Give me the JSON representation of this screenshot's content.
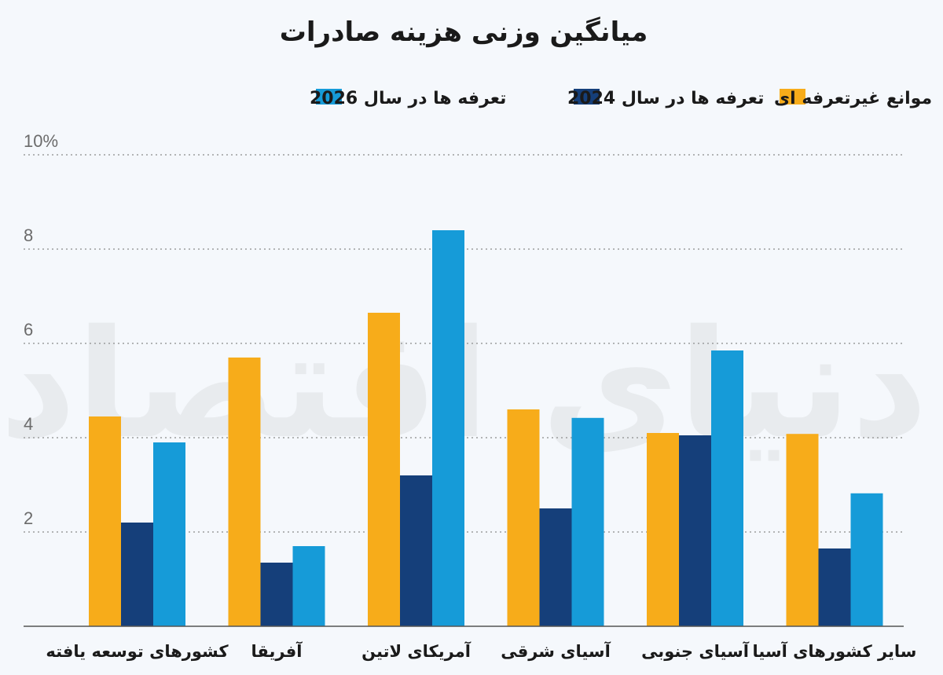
{
  "chart_data": {
    "type": "bar",
    "title": "میانگین وزنی هزینه صادرات",
    "categories": [
      "کشورهای توسعه یافته",
      "آفریقا",
      "آمریکای لاتین",
      "آسیای شرقی",
      "آسیای جنوبی",
      "سایر کشورهای آسیا"
    ],
    "series": [
      {
        "name": "موانع غیرتعرفه ای",
        "color": "#f7ac1a",
        "values": [
          4.45,
          5.7,
          6.65,
          4.6,
          4.1,
          4.08
        ]
      },
      {
        "name": "تعرفه ها در سال 2024",
        "color": "#153f7a",
        "values": [
          2.2,
          1.35,
          3.2,
          2.5,
          4.05,
          1.65
        ]
      },
      {
        "name": "تعرفه ها در سال 2026",
        "color": "#169bd8",
        "values": [
          3.9,
          1.7,
          8.4,
          4.42,
          5.85,
          2.82
        ]
      }
    ],
    "y_ticks": [
      "10%",
      "8",
      "6",
      "4",
      "2"
    ],
    "y_tick_values": [
      10,
      8,
      6,
      4,
      2
    ],
    "ylim": [
      0,
      10
    ],
    "grid": true,
    "legend_position": "top",
    "watermark": "دنیای اقتصاد"
  }
}
